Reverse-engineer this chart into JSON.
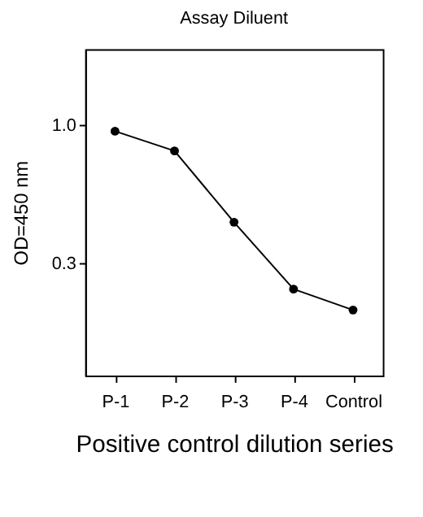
{
  "chart_data": {
    "type": "line",
    "title": "Assay Diluent",
    "xlabel": "Positive control dilution series",
    "ylabel": "OD=450 nm",
    "categories": [
      "P-1",
      "P-2",
      "P-3",
      "P-4",
      "Control"
    ],
    "series": [
      {
        "color": "#000000",
        "values": [
          0.95,
          0.8,
          0.43,
          0.24,
          0.2
        ]
      }
    ],
    "log": "y",
    "ylim": [
      0.113,
      1.94
    ],
    "yticks": [
      {
        "value": 1.0,
        "label": "1.0"
      },
      0.3
    ],
    "grid": false,
    "marker": "circle",
    "line_style": "solid"
  }
}
